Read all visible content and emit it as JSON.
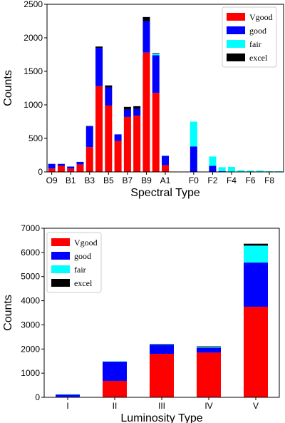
{
  "chart_data": [
    {
      "type": "bar",
      "stacked": true,
      "xlabel": "Spectral Type",
      "ylabel": "Counts",
      "ylim": [
        0,
        2500
      ],
      "yticks": [
        0,
        500,
        1000,
        1500,
        2000,
        2500
      ],
      "categories": [
        "O9",
        "B0",
        "B1",
        "B2",
        "B3",
        "B4",
        "B5",
        "B6",
        "B7",
        "B8",
        "B9",
        "A0",
        "A1",
        "A2",
        "A3",
        "F0",
        "F1",
        "F2",
        "F3",
        "F4",
        "F5",
        "F6",
        "F7",
        "F8",
        "F9"
      ],
      "xtick_labels": [
        "O9",
        "B1",
        "B3",
        "B5",
        "B7",
        "B9",
        "A1",
        "F0",
        "F2",
        "F4",
        "F6",
        "F8"
      ],
      "xtick_categories": [
        "O9",
        "B1",
        "B3",
        "B5",
        "B7",
        "B9",
        "A1",
        "F0",
        "F2",
        "F4",
        "F6",
        "F8"
      ],
      "legend": {
        "position": "top-right",
        "entries": [
          "Vgood",
          "good",
          "fair",
          "excel"
        ]
      },
      "colors": {
        "Vgood": "#ff0000",
        "good": "#0000ff",
        "fair": "#00ffff",
        "excel": "#000000"
      },
      "series": [
        {
          "name": "Vgood",
          "values": [
            50,
            90,
            50,
            110,
            370,
            1280,
            990,
            460,
            820,
            840,
            1780,
            1180,
            100,
            0,
            0,
            0,
            0,
            0,
            0,
            0,
            0,
            0,
            0,
            0,
            0
          ]
        },
        {
          "name": "good",
          "values": [
            70,
            30,
            30,
            40,
            310,
            570,
            270,
            100,
            110,
            100,
            470,
            560,
            140,
            5,
            0,
            380,
            0,
            90,
            10,
            5,
            5,
            0,
            0,
            0,
            0
          ]
        },
        {
          "name": "fair",
          "values": [
            0,
            0,
            0,
            0,
            0,
            0,
            0,
            0,
            0,
            0,
            0,
            20,
            0,
            0,
            0,
            370,
            0,
            140,
            60,
            70,
            20,
            20,
            20,
            10,
            10
          ]
        },
        {
          "name": "excel",
          "values": [
            0,
            0,
            0,
            0,
            5,
            20,
            30,
            0,
            40,
            40,
            60,
            10,
            0,
            0,
            0,
            0,
            0,
            0,
            0,
            0,
            0,
            0,
            0,
            0,
            0
          ]
        }
      ]
    },
    {
      "type": "bar",
      "stacked": true,
      "xlabel": "Luminosity Type",
      "ylabel": "Counts",
      "ylim": [
        0,
        7000
      ],
      "yticks": [
        0,
        1000,
        2000,
        3000,
        4000,
        5000,
        6000,
        7000
      ],
      "categories": [
        "I",
        "II",
        "III",
        "IV",
        "V"
      ],
      "legend": {
        "position": "top-left",
        "entries": [
          "Vgood",
          "good",
          "fair",
          "excel"
        ]
      },
      "colors": {
        "Vgood": "#ff0000",
        "good": "#0000ff",
        "fair": "#00ffff",
        "excel": "#000000"
      },
      "series": [
        {
          "name": "Vgood",
          "values": [
            20,
            680,
            1800,
            1850,
            3750
          ]
        },
        {
          "name": "good",
          "values": [
            100,
            800,
            380,
            200,
            1830
          ]
        },
        {
          "name": "fair",
          "values": [
            5,
            10,
            20,
            30,
            700
          ]
        },
        {
          "name": "excel",
          "values": [
            0,
            0,
            10,
            30,
            80
          ]
        }
      ]
    }
  ]
}
